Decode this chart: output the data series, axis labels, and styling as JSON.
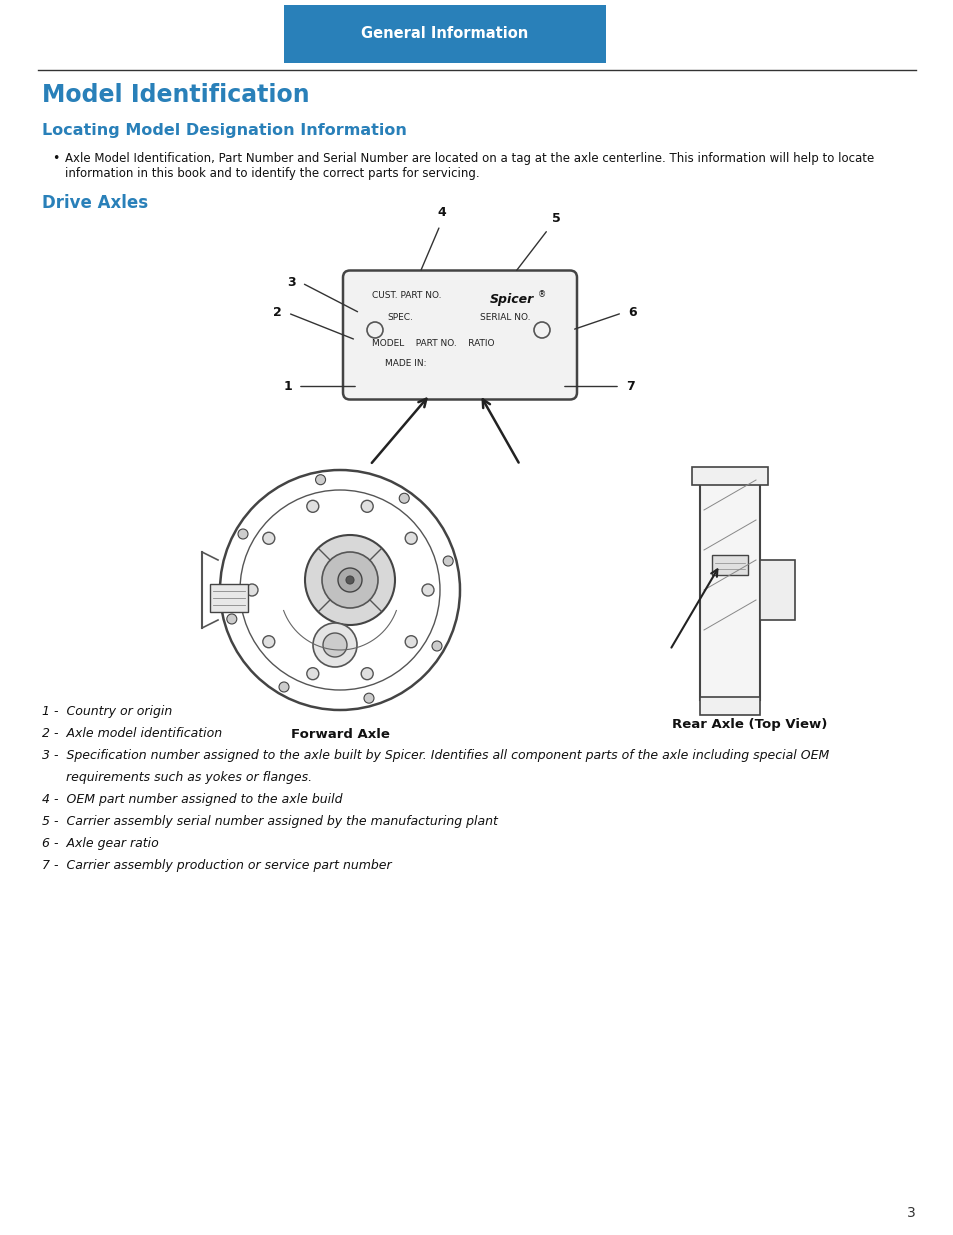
{
  "header_text": "General Information",
  "header_bg": "#2980B9",
  "header_text_color": "#FFFFFF",
  "title": "Model Identification",
  "title_color": "#2980B9",
  "subtitle": "Locating Model Designation Information",
  "subtitle_color": "#2980B9",
  "bullet_line1": "Axle Model Identification, Part Number and Serial Number are located on a tag at the axle centerline. This information will help to locate",
  "bullet_line2": "information in this book and to identify the correct parts for servicing.",
  "section2": "Drive Axles",
  "section2_color": "#2980B9",
  "footer_number": "3",
  "bg_color": "#FFFFFF",
  "text_color": "#111111",
  "tag_color": "#F2F2F2",
  "tag_edge": "#444444",
  "forward_axle_label": "Forward Axle",
  "rear_axle_label": "Rear Axle (Top View)",
  "list_items": [
    [
      "1 -",
      "Country or origin"
    ],
    [
      "2 -",
      "Axle model identification"
    ],
    [
      "3 -",
      "Specification number assigned to the axle built by Spicer. Identifies all component parts of the axle including special OEM"
    ],
    [
      "",
      "requirements such as yokes or flanges."
    ],
    [
      "4 -",
      "OEM part number assigned to the axle build"
    ],
    [
      "5 -",
      "Carrier assembly serial number assigned by the manufacturing plant"
    ],
    [
      "6 -",
      "Axle gear ratio"
    ],
    [
      "7 -",
      "Carrier assembly production or service part number"
    ]
  ]
}
